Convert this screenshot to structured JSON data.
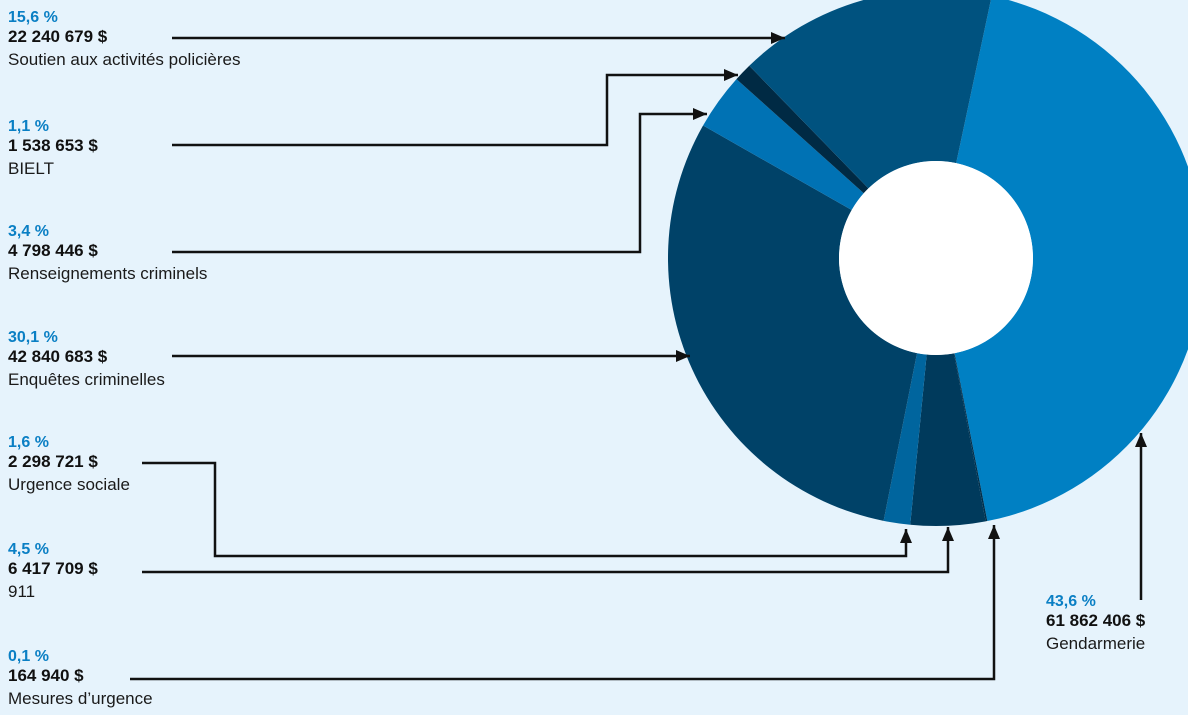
{
  "chart_data": {
    "type": "pie",
    "donut": true,
    "segments": [
      {
        "name": "Gendarmerie",
        "percent_label": "43,6 %",
        "amount_label": "61 862 406 $",
        "value": 43.6,
        "color": "#0080c3"
      },
      {
        "name": "Mesures d’urgence",
        "percent_label": "0,1 %",
        "amount_label": "164 940 $",
        "value": 0.1,
        "color": "#002f4b"
      },
      {
        "name": "911",
        "percent_label": "4,5 %",
        "amount_label": "6 417 709 $",
        "value": 4.5,
        "color": "#003a5c"
      },
      {
        "name": "Urgence sociale",
        "percent_label": "1,6 %",
        "amount_label": "2 298 721 $",
        "value": 1.6,
        "color": "#00659e"
      },
      {
        "name": "Enquêtes criminelles",
        "percent_label": "30,1 %",
        "amount_label": "42 840 683 $",
        "value": 30.1,
        "color": "#004268"
      },
      {
        "name": "Renseignements criminels",
        "percent_label": "3,4 %",
        "amount_label": "4 798 446 $",
        "value": 3.4,
        "color": "#0072b4"
      },
      {
        "name": "BIELT",
        "percent_label": "1,1 %",
        "amount_label": "1 538 653 $",
        "value": 1.1,
        "color": "#002a44"
      },
      {
        "name": "Soutien aux activités policières",
        "percent_label": "15,6 %",
        "amount_label": "22 240 679 $",
        "value": 15.6,
        "color": "#00527f"
      }
    ],
    "percent_color": "#0a7fc4",
    "connector_color": "#111111"
  }
}
